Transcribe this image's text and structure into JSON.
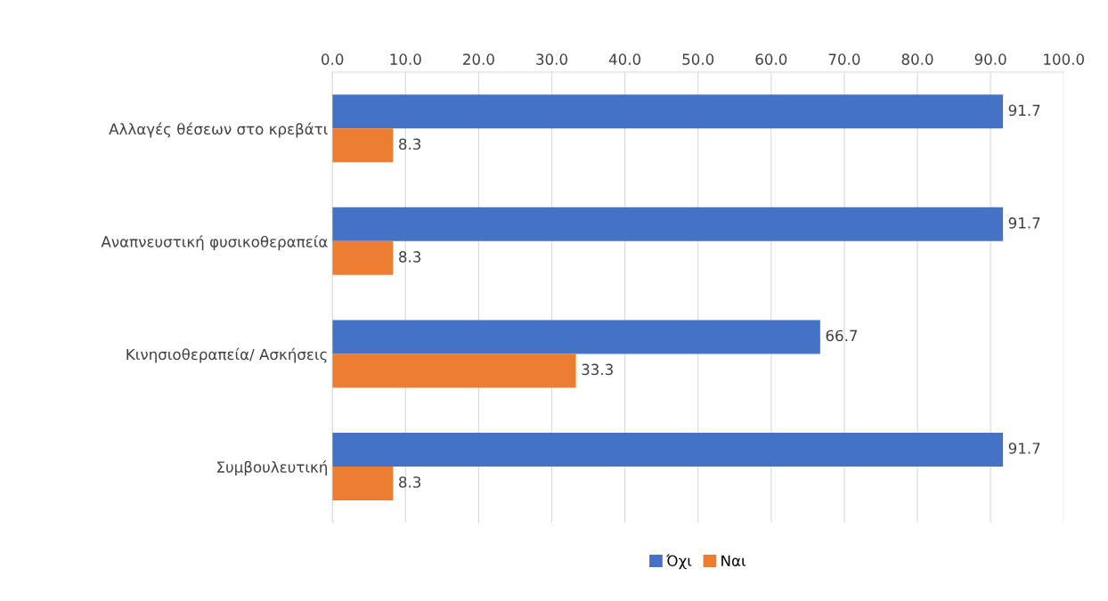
{
  "chart_data": {
    "type": "bar",
    "orientation": "horizontal",
    "categories": [
      "Αλλαγές θέσεων στο κρεβάτι",
      "Αναπνευστική φυσικοθεραπεία",
      "Κινησιοθεραπεία/ Ασκήσεις",
      "Συμβουλευτική"
    ],
    "series": [
      {
        "name": "Όχι",
        "color": "#4472c4",
        "values": [
          91.7,
          91.7,
          66.7,
          91.7
        ]
      },
      {
        "name": "Ναι",
        "color": "#ed7d31",
        "values": [
          8.3,
          8.3,
          33.3,
          8.3
        ]
      }
    ],
    "xlim": [
      0,
      100
    ],
    "xticks": [
      {
        "value": 0,
        "label": "0.0"
      },
      {
        "value": 10,
        "label": "10.0"
      },
      {
        "value": 20,
        "label": "20.0"
      },
      {
        "value": 30,
        "label": "30.0"
      },
      {
        "value": 40,
        "label": "40.0"
      },
      {
        "value": 50,
        "label": "50.0"
      },
      {
        "value": 60,
        "label": "60.0"
      },
      {
        "value": 70,
        "label": "70.0"
      },
      {
        "value": 80,
        "label": "80.0"
      },
      {
        "value": 90,
        "label": "90.0"
      },
      {
        "value": 100,
        "label": "100.0"
      }
    ],
    "grid": "x",
    "legend": "bottom",
    "data_labels": true
  }
}
